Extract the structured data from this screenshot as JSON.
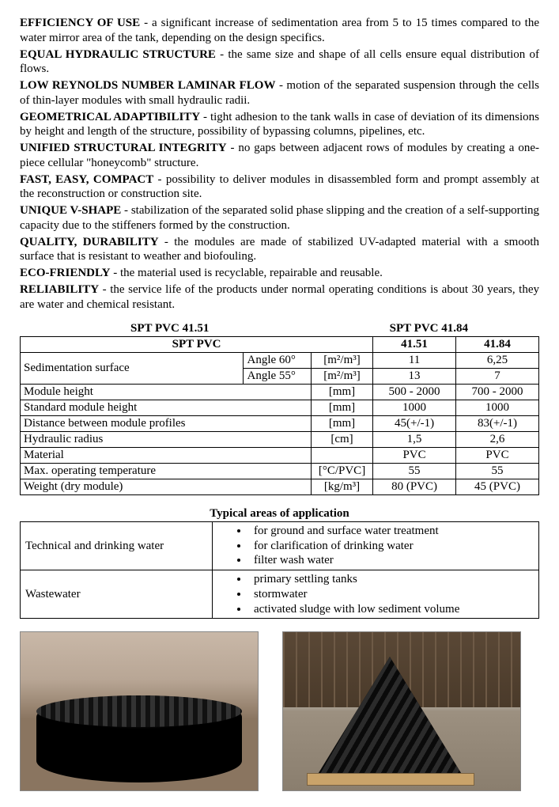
{
  "features": [
    {
      "term": "EFFICIENCY OF USE",
      "desc": " - a significant increase of sedimentation area from 5 to 15 times compared to the water mirror area of the tank, depending on the design specifics."
    },
    {
      "term": "EQUAL HYDRAULIC STRUCTURE",
      "desc": " - the same size and shape of all cells ensure equal distribution of flows."
    },
    {
      "term": "LOW REYNOLDS NUMBER LAMINAR FLOW",
      "desc": " - motion of the separated suspension through the cells of thin-layer modules with small hydraulic radii."
    },
    {
      "term": "GEOMETRICAL ADAPTIBILITY",
      "desc": " - tight adhesion to the tank walls in case of deviation of its dimensions by height and length of the structure, possibility of bypassing columns, pipelines, etc."
    },
    {
      "term": "UNIFIED STRUCTURAL INTEGRITY",
      "desc": " - no gaps between adjacent rows of modules by creating a one-piece cellular \"honeycomb\" structure."
    },
    {
      "term": "FAST, EASY, COMPACT",
      "desc": " - possibility to deliver modules in disassembled form and prompt assembly at the reconstruction or construction site."
    },
    {
      "term": "UNIQUE V-SHAPE",
      "desc": " - stabilization of the separated solid phase slipping and the creation of a self-supporting capacity due to the stiffeners formed by the construction."
    },
    {
      "term": "QUALITY, DURABILITY",
      "desc": " - the modules are made of stabilized UV-adapted material with a smooth surface that is resistant to weather and biofouling."
    },
    {
      "term": "ECO-FRIENDLY",
      "desc": " - the material used is recyclable, repairable and reusable."
    },
    {
      "term": "RELIABILITY",
      "desc": " - the service life of the products under normal operating conditions is about 30 years, they are water and chemical resistant."
    }
  ],
  "tableTop": {
    "leftLabel": "SPT PVC 41.51",
    "rightLabel": "SPT PVC 41.84"
  },
  "spec": {
    "groupHeader": "SPT PVC",
    "col1": "41.51",
    "col2": "41.84",
    "rows": {
      "sedSurface": {
        "label": "Sedimentation surface",
        "a60": "Angle 60°",
        "a60unit": "[m²/m³]",
        "a60v1": "11",
        "a60v2": "6,25",
        "a55": "Angle 55°",
        "a55unit": "[m²/m³]",
        "a55v1": "13",
        "a55v2": "7"
      },
      "modHeight": {
        "label": "Module height",
        "unit": "[mm]",
        "v1": "500 - 2000",
        "v2": "700 - 2000"
      },
      "stdHeight": {
        "label": "Standard module height",
        "unit": "[mm]",
        "v1": "1000",
        "v2": "1000"
      },
      "dist": {
        "label": "Distance between module profiles",
        "unit": "[mm]",
        "v1": "45(+/-1)",
        "v2": "83(+/-1)"
      },
      "hydr": {
        "label": "Hydraulic radius",
        "unit": "[cm]",
        "v1": "1,5",
        "v2": "2,6"
      },
      "mat": {
        "label": "Material",
        "unit": "",
        "v1": "PVC",
        "v2": "PVC"
      },
      "maxTemp": {
        "label": "Max. operating temperature",
        "unit": "[°C/PVC]",
        "v1": "55",
        "v2": "55"
      },
      "weight": {
        "label": "Weight (dry module)",
        "unit": "[kg/m³]",
        "v1": "80 (PVC)",
        "v2": "45 (PVC)"
      }
    }
  },
  "appTitle": "Typical areas of application",
  "applications": {
    "tech": {
      "label": "Technical and drinking water",
      "items": [
        "for ground and surface water treatment",
        "for clarification of drinking water",
        "filter wash water"
      ]
    },
    "waste": {
      "label": "Wastewater",
      "items": [
        "primary settling tanks",
        "stormwater",
        "activated sludge with low sediment volume"
      ]
    }
  }
}
